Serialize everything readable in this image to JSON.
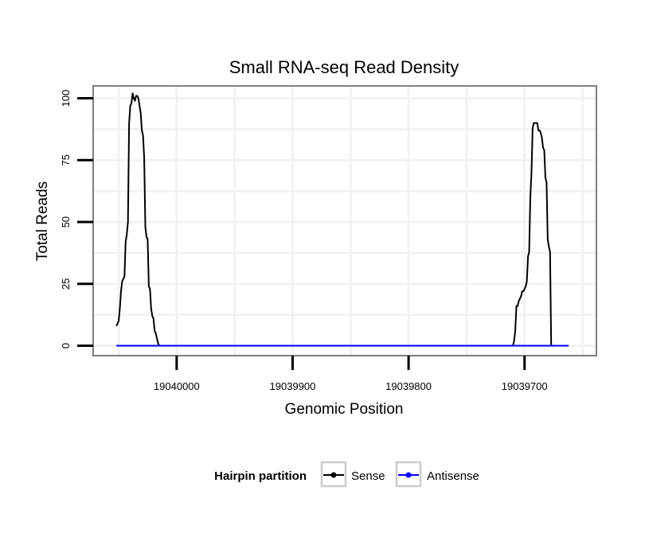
{
  "chart_data": {
    "type": "line",
    "title": "Small RNA-seq Read Density",
    "xlabel": "Genomic Position",
    "ylabel": "Total Reads",
    "x_reversed": true,
    "xlim": [
      19040072,
      19039638
    ],
    "ylim": [
      -4,
      105
    ],
    "xticks": [
      19040000,
      19039900,
      19039800,
      19039700
    ],
    "xtick_labels": [
      "19040000",
      "19039900",
      "19039800",
      "19039700"
    ],
    "yticks": [
      0,
      25,
      50,
      75,
      100
    ],
    "ytick_labels": [
      "0",
      "25",
      "50",
      "75",
      "100"
    ],
    "grid": true,
    "legend": {
      "title": "Hairpin partition",
      "position": "bottom",
      "entries": [
        {
          "name": "Sense",
          "color": "#000000"
        },
        {
          "name": "Antisense",
          "color": "#0000ff"
        }
      ]
    },
    "series": [
      {
        "name": "Sense",
        "color": "#000000",
        "x": [
          19040052,
          19040050,
          19040049,
          19040048,
          19040047,
          19040046,
          19040045,
          19040044,
          19040043,
          19040042,
          19040041,
          19040040,
          19040039,
          19040038,
          19040037,
          19040036,
          19040035,
          19040034,
          19040033,
          19040032,
          19040031,
          19040030,
          19040029,
          19040028,
          19040027,
          19040026,
          19040025,
          19040024,
          19040023,
          19040022,
          19040021,
          19040020,
          19040019,
          19040018,
          19040017,
          19040016,
          19040015,
          19040014,
          19040013,
          19040012,
          19040011,
          19040010,
          19040009,
          19040008,
          19040007,
          19040006,
          19040005,
          19040004,
          19040003,
          19040002,
          19040001,
          19040000,
          19039999,
          19039710,
          19039709,
          19039708,
          19039707,
          19039706,
          19039705,
          19039704,
          19039703,
          19039702,
          19039701,
          19039700,
          19039699,
          19039698,
          19039697,
          19039696,
          19039695,
          19039694,
          19039693,
          19039692,
          19039691,
          19039690,
          19039689,
          19039688,
          19039687,
          19039686,
          19039685,
          19039684,
          19039683,
          19039682,
          19039681,
          19039680,
          19039679,
          19039678,
          19039677,
          19039676,
          19039675,
          19039674,
          19039673,
          19039672,
          19039671,
          19039670,
          19039669,
          19039668,
          19039667,
          19039666,
          19039665,
          19039664,
          19039663,
          19039662
        ],
        "values": [
          8,
          10,
          15,
          22,
          26,
          27,
          28,
          42,
          45,
          50,
          90,
          97,
          98,
          102,
          100,
          99,
          101,
          101,
          100,
          97,
          94,
          87,
          85,
          76,
          48,
          44,
          43,
          24,
          23,
          15,
          12,
          11,
          6,
          5,
          3,
          1,
          0,
          0,
          0,
          0,
          0,
          0,
          0,
          0,
          0,
          0,
          0,
          0,
          0,
          0,
          0,
          0,
          0,
          0,
          2,
          6,
          16,
          16,
          18,
          19,
          20,
          22,
          22,
          23,
          24,
          26,
          36,
          38,
          60,
          70,
          88,
          90,
          90,
          90,
          90,
          87,
          87,
          86,
          84,
          80,
          79,
          68,
          66,
          43,
          40,
          38,
          0,
          0,
          0,
          0,
          0,
          0,
          0,
          0,
          0,
          0,
          0,
          0,
          0,
          0,
          0,
          0
        ]
      },
      {
        "name": "Antisense",
        "color": "#0000ff",
        "x": [
          19040052,
          19039662
        ],
        "values": [
          0,
          0
        ]
      }
    ]
  }
}
